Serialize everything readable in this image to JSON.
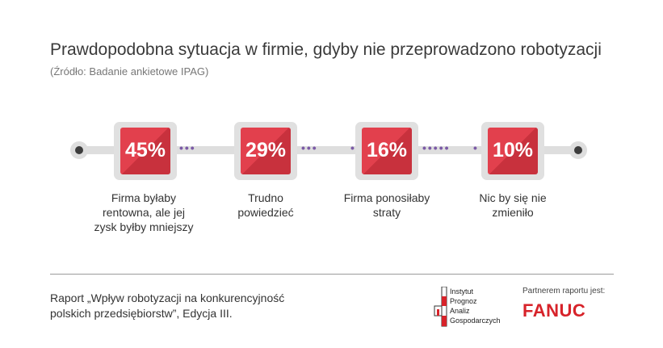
{
  "title": "Prawdopodobna sytuacja w firmie, gdyby nie przeprowadzono robotyzacji",
  "subtitle": "(Źródło: Badanie ankietowe IPAG)",
  "chart_data": {
    "type": "table",
    "title": "Prawdopodobna sytuacja w firmie, gdyby nie przeprowadzono robotyzacji",
    "subtitle": "(Źródło: Badanie ankietowe IPAG)",
    "categories": [
      "Firma byłaby rentowna, ale jej zysk byłby mniejszy",
      "Trudno powiedzieć",
      "Firma ponosiłaby straty",
      "Nic by się nie zmieniło"
    ],
    "values": [
      45,
      29,
      16,
      10
    ],
    "value_labels": [
      "45%",
      "29%",
      "16%",
      "10%"
    ],
    "label_lines": [
      [
        "Firma byłaby",
        "rentowna, ale jej",
        "zysk byłby mniejszy"
      ],
      [
        "Trudno",
        "powiedzieć"
      ],
      [
        "Firma ponosiłaby",
        "straty"
      ],
      [
        "Nic by się nie",
        "zmieniło"
      ]
    ],
    "colors": {
      "box": "#e2404d",
      "box_shade": "#c8313d",
      "dots": "#7b5aa6",
      "track": "#dedede"
    }
  },
  "footer": {
    "report_line1": "Raport „Wpływ robotyzacji na konkurencyjność",
    "report_line2": "polskich przedsiębiorstw”, Edycja III.",
    "ipag": [
      "Instytut",
      "Prognoz",
      "Analiz",
      "Gospodarczych"
    ],
    "partner_label": "Partnerem raportu jest:",
    "partner_brand": "FANUC",
    "brand_color": "#d7232a"
  }
}
